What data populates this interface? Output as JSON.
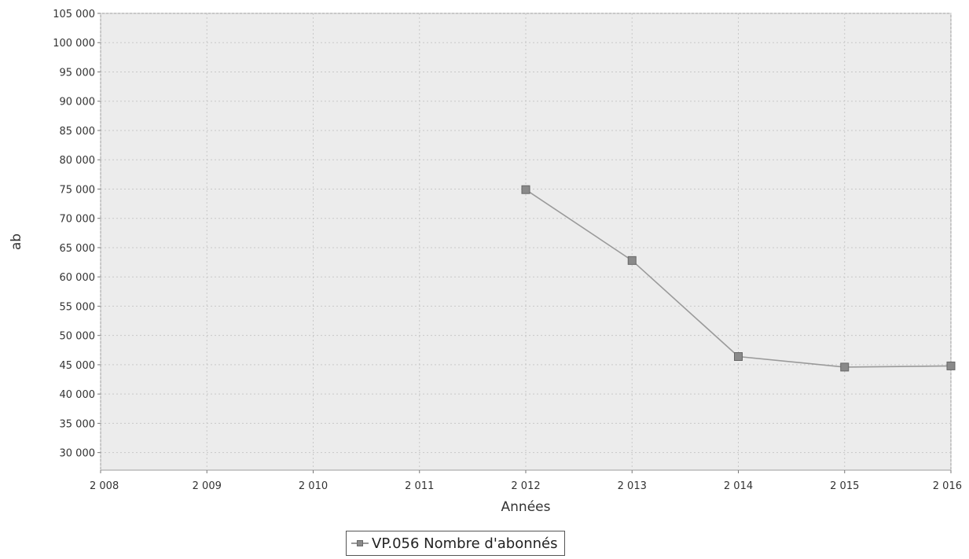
{
  "chart_data": {
    "type": "line",
    "xlabel": "Années",
    "ylabel": "ab",
    "x_ticks": [
      "2 008",
      "2 009",
      "2 010",
      "2 011",
      "2 012",
      "2 013",
      "2 014",
      "2 015",
      "2 016"
    ],
    "y_ticks": [
      "30 000",
      "35 000",
      "40 000",
      "45 000",
      "50 000",
      "55 000",
      "60 000",
      "65 000",
      "70 000",
      "75 000",
      "80 000",
      "85 000",
      "90 000",
      "95 000",
      "100 000",
      "105 000"
    ],
    "xlim": [
      2008,
      2016
    ],
    "ylim": [
      27000,
      105000
    ],
    "grid": true,
    "legend_position": "bottom-center",
    "series": [
      {
        "name": "VP.056 Nombre d'abonnés",
        "color": "#8a8a8a",
        "x": [
          2012,
          2013,
          2014,
          2015,
          2016
        ],
        "y": [
          74900,
          62800,
          46400,
          44600,
          44800
        ]
      }
    ]
  }
}
